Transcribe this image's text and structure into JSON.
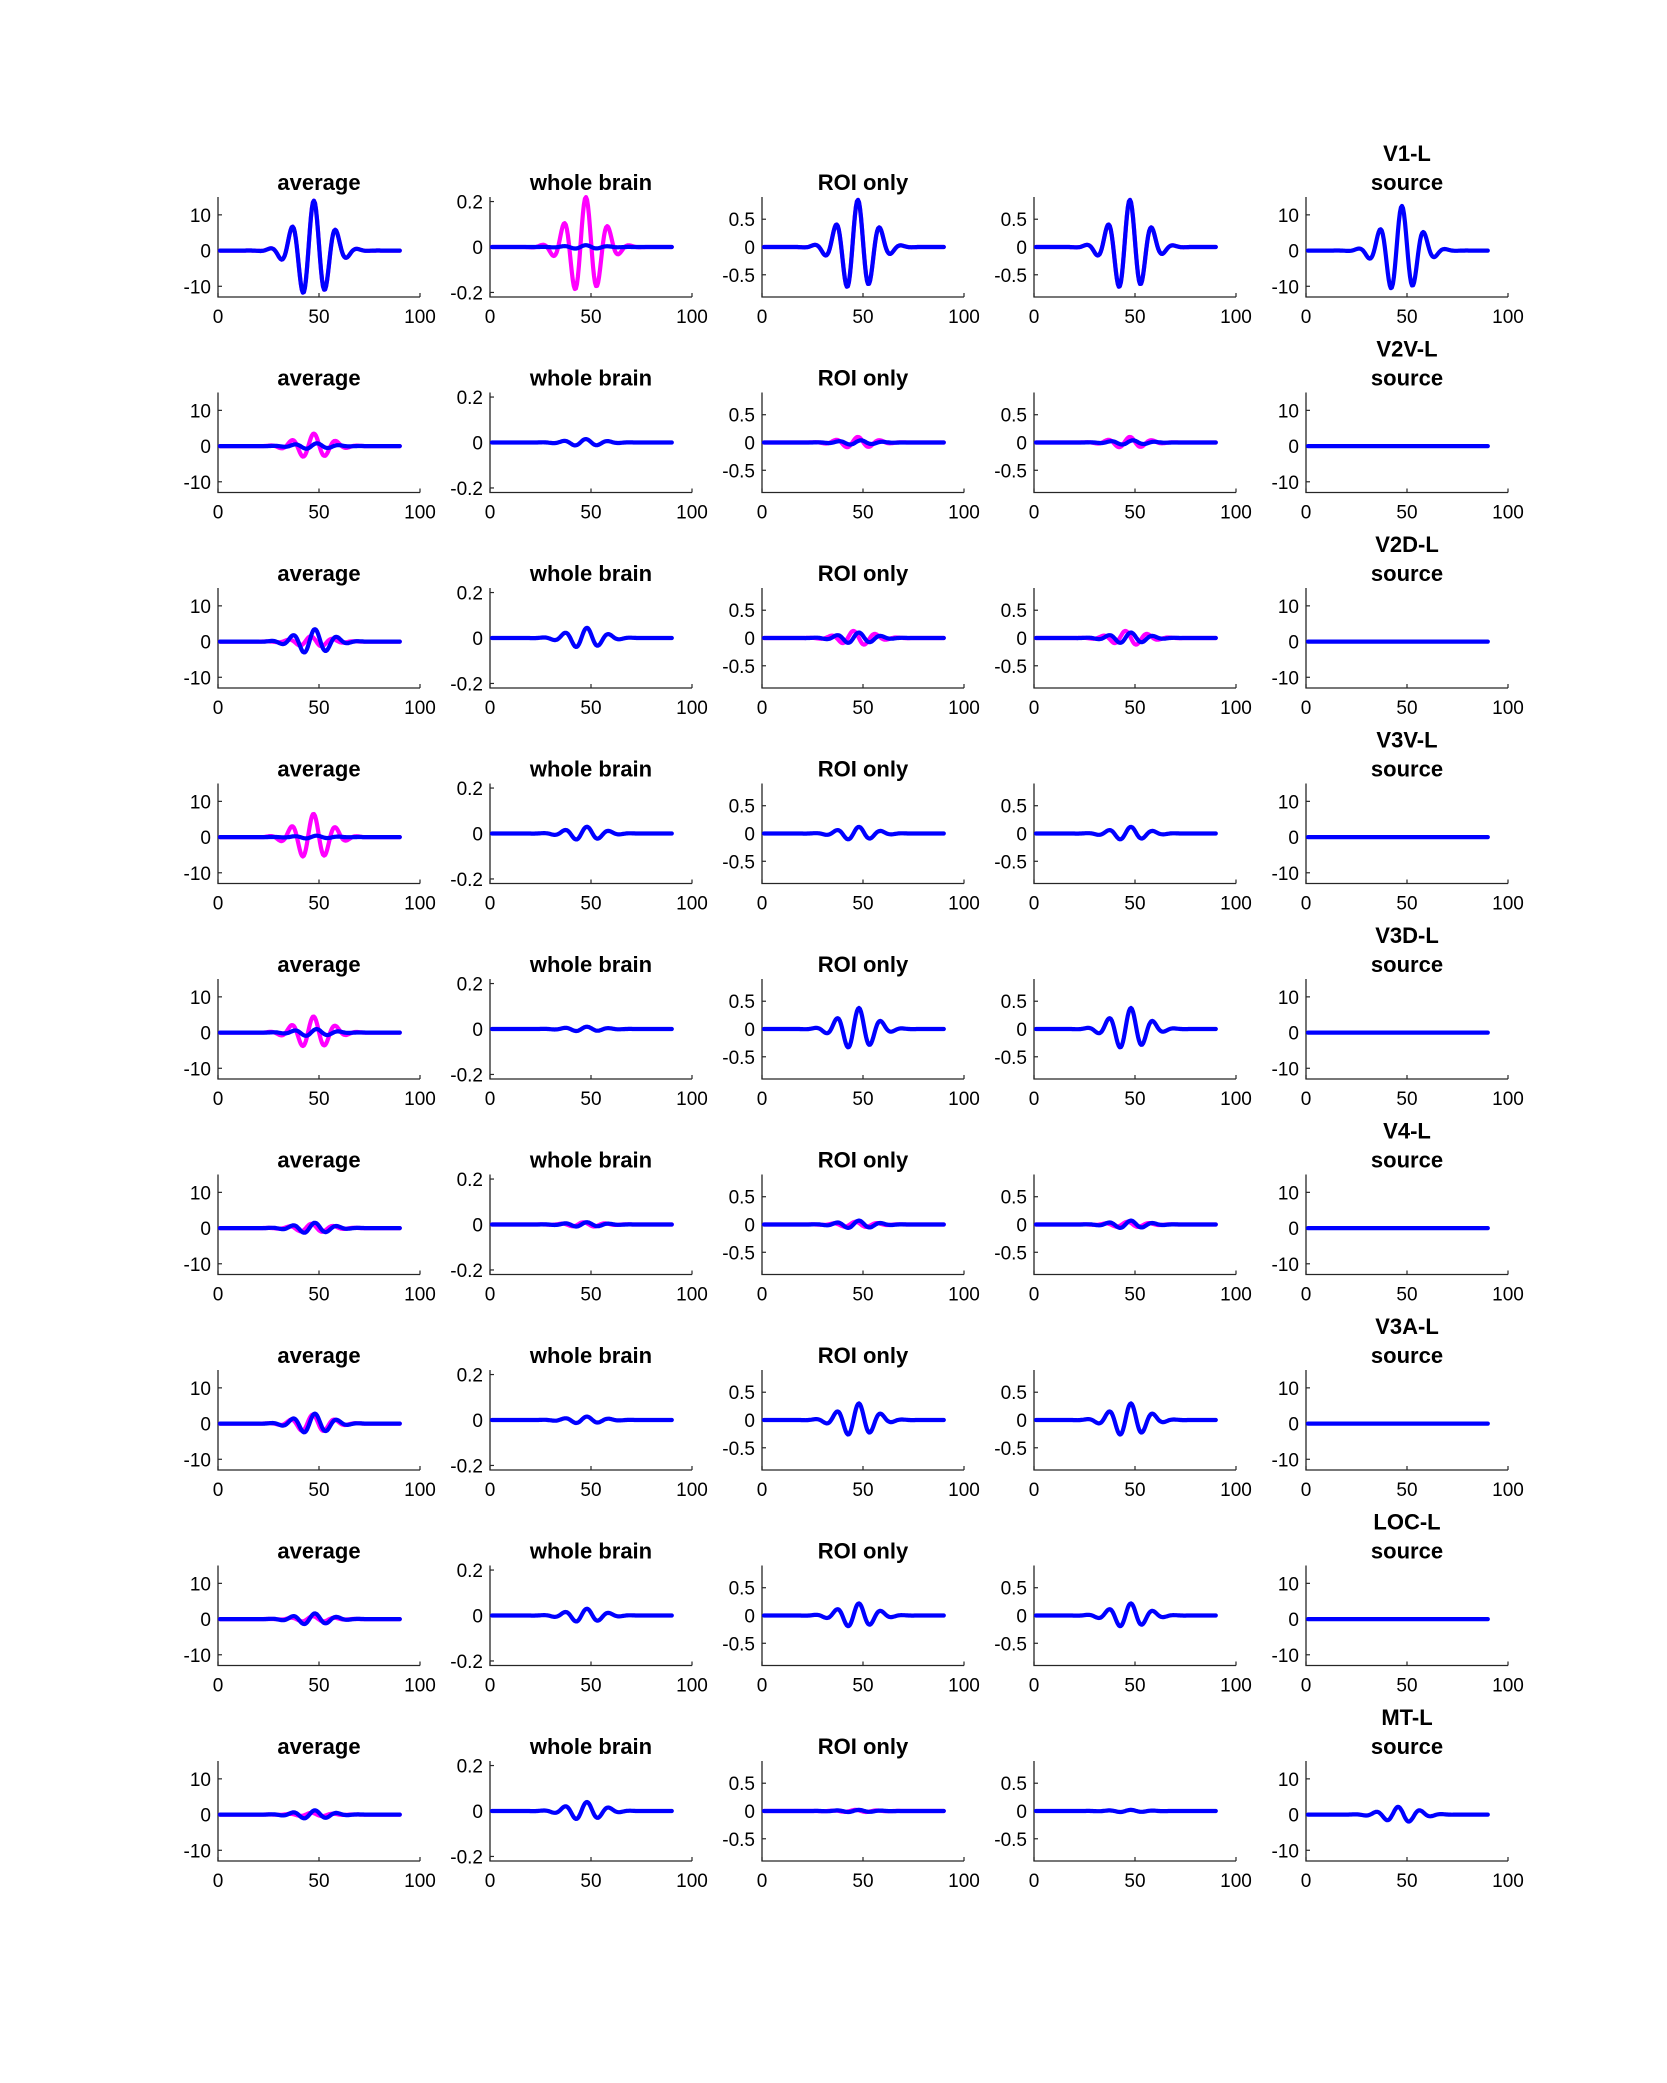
{
  "figure": {
    "panel_titles": [
      "average",
      "whole brain",
      "ROI only",
      "",
      "source"
    ],
    "x_ticks": [
      "0",
      "50",
      "100"
    ],
    "xlim": [
      0,
      100
    ],
    "colors": {
      "magenta": "#ff00ff",
      "blue": "#0000ff"
    },
    "columns": [
      {
        "ylim": [
          -13,
          15
        ],
        "yticks": [
          10,
          0,
          -10
        ],
        "ytick_labels": [
          "10",
          "0",
          "-10"
        ]
      },
      {
        "ylim": [
          -0.22,
          0.22
        ],
        "yticks": [
          0.2,
          0,
          -0.2
        ],
        "ytick_labels": [
          "0.2",
          "0",
          "-0.2"
        ]
      },
      {
        "ylim": [
          -0.9,
          0.9
        ],
        "yticks": [
          0.5,
          0,
          -0.5
        ],
        "ytick_labels": [
          "0.5",
          "0",
          "-0.5"
        ]
      },
      {
        "ylim": [
          -0.9,
          0.9
        ],
        "yticks": [
          0.5,
          0,
          -0.5
        ],
        "ytick_labels": [
          "0.5",
          "0",
          "-0.5"
        ]
      },
      {
        "ylim": [
          -13,
          15
        ],
        "yticks": [
          10,
          0,
          -10
        ],
        "ytick_labels": [
          "10",
          "0",
          "-10"
        ]
      }
    ]
  },
  "chart_data": {
    "type": "line",
    "layout": "9 rows x 5 columns of small-multiple line plots",
    "x_range": [
      1,
      90
    ],
    "wave_model": "y(x) = A * exp(-((x-47)/12)^2) * sin(2*pi*(x-47)/11 + phase); approximate reconstruction of the damped oscillation shown",
    "rows": [
      {
        "region": "V1-L",
        "panels": [
          {
            "title": "average",
            "series": [
              {
                "color": "magenta",
                "amplitude": 14,
                "phase": 1.3
              },
              {
                "color": "blue",
                "amplitude": 14,
                "phase": 1.3
              }
            ]
          },
          {
            "title": "whole brain",
            "series": [
              {
                "color": "magenta",
                "amplitude": 0.22,
                "phase": 1.3
              },
              {
                "color": "blue",
                "amplitude": 0.008,
                "phase": 1.3
              }
            ]
          },
          {
            "title": "ROI only",
            "series": [
              {
                "color": "magenta",
                "amplitude": 0.85,
                "phase": 1.3
              },
              {
                "color": "blue",
                "amplitude": 0.85,
                "phase": 1.3
              }
            ]
          },
          {
            "title": "",
            "series": [
              {
                "color": "magenta",
                "amplitude": 0.85,
                "phase": 1.3
              },
              {
                "color": "blue",
                "amplitude": 0.85,
                "phase": 1.3
              }
            ]
          },
          {
            "title": "source",
            "series": [
              {
                "color": "blue",
                "amplitude": 12.5,
                "phase": 1.3
              }
            ]
          }
        ]
      },
      {
        "region": "V2V-L",
        "panels": [
          {
            "title": "average",
            "series": [
              {
                "color": "magenta",
                "amplitude": 3.5,
                "phase": 1.3
              },
              {
                "color": "blue",
                "amplitude": 0.8,
                "phase": 0.4
              }
            ]
          },
          {
            "title": "whole brain",
            "series": [
              {
                "color": "blue",
                "amplitude": 0.015,
                "phase": 1.3
              }
            ]
          },
          {
            "title": "ROI only",
            "series": [
              {
                "color": "magenta",
                "amplitude": 0.1,
                "phase": 1.3
              },
              {
                "color": "blue",
                "amplitude": 0.04,
                "phase": 0.4
              }
            ]
          },
          {
            "title": "",
            "series": [
              {
                "color": "magenta",
                "amplitude": 0.1,
                "phase": 1.3
              },
              {
                "color": "blue",
                "amplitude": 0.04,
                "phase": 0.4
              }
            ]
          },
          {
            "title": "source",
            "series": [
              {
                "color": "blue",
                "amplitude": 0,
                "phase": 0
              }
            ]
          }
        ]
      },
      {
        "region": "V2D-L",
        "panels": [
          {
            "title": "average",
            "series": [
              {
                "color": "magenta",
                "amplitude": 1.5,
                "phase": 2.2
              },
              {
                "color": "blue",
                "amplitude": 3.5,
                "phase": 1.0
              }
            ]
          },
          {
            "title": "whole brain",
            "series": [
              {
                "color": "blue",
                "amplitude": 0.045,
                "phase": 1.0
              }
            ]
          },
          {
            "title": "ROI only",
            "series": [
              {
                "color": "magenta",
                "amplitude": 0.13,
                "phase": 2.6
              },
              {
                "color": "blue",
                "amplitude": 0.1,
                "phase": 1.0
              }
            ]
          },
          {
            "title": "",
            "series": [
              {
                "color": "magenta",
                "amplitude": 0.13,
                "phase": 2.6
              },
              {
                "color": "blue",
                "amplitude": 0.1,
                "phase": 1.0
              }
            ]
          },
          {
            "title": "source",
            "series": [
              {
                "color": "blue",
                "amplitude": 0,
                "phase": 0
              }
            ]
          }
        ]
      },
      {
        "region": "V3V-L",
        "panels": [
          {
            "title": "average",
            "series": [
              {
                "color": "magenta",
                "amplitude": 6.5,
                "phase": 1.4
              },
              {
                "color": "blue",
                "amplitude": 0.4,
                "phase": 0.5
              }
            ]
          },
          {
            "title": "whole brain",
            "series": [
              {
                "color": "blue",
                "amplitude": 0.03,
                "phase": 1.0
              }
            ]
          },
          {
            "title": "ROI only",
            "series": [
              {
                "color": "blue",
                "amplitude": 0.12,
                "phase": 1.0
              }
            ]
          },
          {
            "title": "",
            "series": [
              {
                "color": "blue",
                "amplitude": 0.12,
                "phase": 1.0
              }
            ]
          },
          {
            "title": "source",
            "series": [
              {
                "color": "blue",
                "amplitude": 0,
                "phase": 0
              }
            ]
          }
        ]
      },
      {
        "region": "V3D-L",
        "panels": [
          {
            "title": "average",
            "series": [
              {
                "color": "magenta",
                "amplitude": 4.5,
                "phase": 1.4
              },
              {
                "color": "blue",
                "amplitude": 1.0,
                "phase": 0.5
              }
            ]
          },
          {
            "title": "whole brain",
            "series": [
              {
                "color": "blue",
                "amplitude": 0.01,
                "phase": 1.0
              }
            ]
          },
          {
            "title": "ROI only",
            "series": [
              {
                "color": "blue",
                "amplitude": 0.38,
                "phase": 1.0
              }
            ]
          },
          {
            "title": "",
            "series": [
              {
                "color": "blue",
                "amplitude": 0.38,
                "phase": 1.0
              }
            ]
          },
          {
            "title": "source",
            "series": [
              {
                "color": "blue",
                "amplitude": 0,
                "phase": 0
              }
            ]
          }
        ]
      },
      {
        "region": "V4-L",
        "panels": [
          {
            "title": "average",
            "series": [
              {
                "color": "magenta",
                "amplitude": 1.2,
                "phase": 2.0
              },
              {
                "color": "blue",
                "amplitude": 1.5,
                "phase": 1.0
              }
            ]
          },
          {
            "title": "whole brain",
            "series": [
              {
                "color": "magenta",
                "amplitude": 0.01,
                "phase": 2.0
              },
              {
                "color": "blue",
                "amplitude": 0.01,
                "phase": 1.0
              }
            ]
          },
          {
            "title": "ROI only",
            "series": [
              {
                "color": "magenta",
                "amplitude": 0.05,
                "phase": 2.0
              },
              {
                "color": "blue",
                "amplitude": 0.07,
                "phase": 1.0
              }
            ]
          },
          {
            "title": "",
            "series": [
              {
                "color": "magenta",
                "amplitude": 0.05,
                "phase": 2.0
              },
              {
                "color": "blue",
                "amplitude": 0.07,
                "phase": 1.0
              }
            ]
          },
          {
            "title": "source",
            "series": [
              {
                "color": "blue",
                "amplitude": 0,
                "phase": 0
              }
            ]
          }
        ]
      },
      {
        "region": "V3A-L",
        "panels": [
          {
            "title": "average",
            "series": [
              {
                "color": "magenta",
                "amplitude": 2.5,
                "phase": 1.6
              },
              {
                "color": "blue",
                "amplitude": 2.8,
                "phase": 1.0
              }
            ]
          },
          {
            "title": "whole brain",
            "series": [
              {
                "color": "blue",
                "amplitude": 0.015,
                "phase": 1.0
              }
            ]
          },
          {
            "title": "ROI only",
            "series": [
              {
                "color": "blue",
                "amplitude": 0.3,
                "phase": 1.0
              }
            ]
          },
          {
            "title": "",
            "series": [
              {
                "color": "blue",
                "amplitude": 0.3,
                "phase": 1.0
              }
            ]
          },
          {
            "title": "source",
            "series": [
              {
                "color": "blue",
                "amplitude": 0,
                "phase": 0
              }
            ]
          }
        ]
      },
      {
        "region": "LOC-L",
        "panels": [
          {
            "title": "average",
            "series": [
              {
                "color": "magenta",
                "amplitude": 0.8,
                "phase": 1.6
              },
              {
                "color": "blue",
                "amplitude": 1.6,
                "phase": 1.0
              }
            ]
          },
          {
            "title": "whole brain",
            "series": [
              {
                "color": "blue",
                "amplitude": 0.03,
                "phase": 1.0
              }
            ]
          },
          {
            "title": "ROI only",
            "series": [
              {
                "color": "blue",
                "amplitude": 0.22,
                "phase": 1.0
              }
            ]
          },
          {
            "title": "",
            "series": [
              {
                "color": "blue",
                "amplitude": 0.22,
                "phase": 1.0
              }
            ]
          },
          {
            "title": "source",
            "series": [
              {
                "color": "blue",
                "amplitude": 0,
                "phase": 0
              }
            ]
          }
        ]
      },
      {
        "region": "MT-L",
        "panels": [
          {
            "title": "average",
            "series": [
              {
                "color": "magenta",
                "amplitude": 0.5,
                "phase": 2.0
              },
              {
                "color": "blue",
                "amplitude": 1.2,
                "phase": 1.0
              }
            ]
          },
          {
            "title": "whole brain",
            "series": [
              {
                "color": "blue",
                "amplitude": 0.04,
                "phase": 1.0
              }
            ]
          },
          {
            "title": "ROI only",
            "series": [
              {
                "color": "magenta",
                "amplitude": 0.02,
                "phase": 2.0
              },
              {
                "color": "blue",
                "amplitude": 0.02,
                "phase": 1.0
              }
            ]
          },
          {
            "title": "",
            "series": [
              {
                "color": "blue",
                "amplitude": 0.02,
                "phase": 1.0
              }
            ]
          },
          {
            "title": "source",
            "series": [
              {
                "color": "blue",
                "amplitude": 2.2,
                "phase": 2.4
              }
            ]
          }
        ]
      }
    ]
  }
}
